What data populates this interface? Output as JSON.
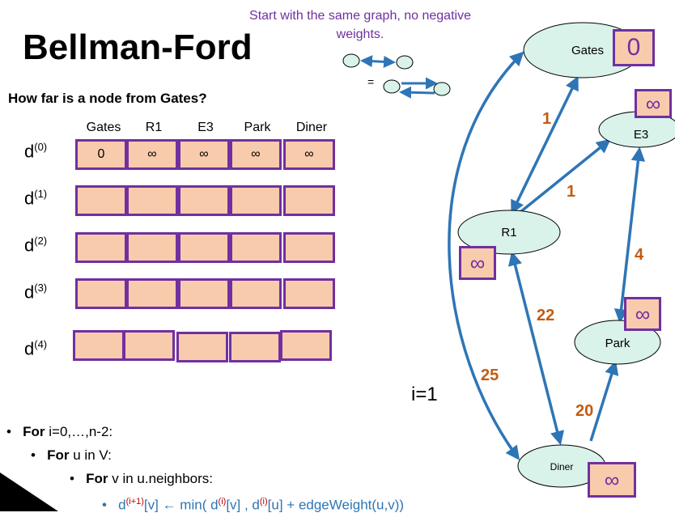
{
  "title": "Bellman-Ford",
  "note": "Start with the same graph, no negative weights.",
  "equals_sign": "=",
  "question": "How far is a node from Gates?",
  "columns": [
    "Gates",
    "R1",
    "E3",
    "Park",
    "Diner"
  ],
  "rows": [
    {
      "label": "d",
      "sup": "(0)",
      "cells": [
        "0",
        "∞",
        "∞",
        "∞",
        "∞"
      ]
    },
    {
      "label": "d",
      "sup": "(1)",
      "cells": [
        "",
        "",
        "",
        "",
        ""
      ]
    },
    {
      "label": "d",
      "sup": "(2)",
      "cells": [
        "",
        "",
        "",
        "",
        ""
      ]
    },
    {
      "label": "d",
      "sup": "(3)",
      "cells": [
        "",
        "",
        "",
        "",
        ""
      ]
    },
    {
      "label": "d",
      "sup": "(4)",
      "cells": [
        "",
        "",
        "",
        "",
        ""
      ]
    }
  ],
  "iteration": "i=1",
  "algorithm": {
    "line1_kw": "For",
    "line1_rest": " i=0,…,n-2:",
    "line2_kw": "For",
    "line2_rest": " u in V:",
    "line3_kw": "For",
    "line3_rest": " v in u.neighbors:",
    "line4": {
      "a": "d",
      "s1": "(i+1)",
      "b": "[v] ← min( d",
      "s2": "(i)",
      "c": "[v] , d",
      "s3": "(i)",
      "d": "[u] + edgeWeight(u,v))"
    }
  },
  "graph": {
    "nodes": {
      "gates": "Gates",
      "e3": "E3",
      "r1": "R1",
      "park": "Park",
      "diner": "Diner"
    },
    "distances": {
      "gates": "0",
      "e3": "∞",
      "r1": "∞",
      "park": "∞",
      "diner": "∞"
    },
    "weights": {
      "gates_r1": "1",
      "r1_e3": "1",
      "e3_park": "4",
      "r1_diner": "22",
      "gates_diner": "25",
      "park_diner": "20"
    }
  },
  "colors": {
    "edge": "#2e75b6",
    "node_fill": "#d9f2ea",
    "box_fill": "#f8cbad",
    "box_border": "#7030a0",
    "weight": "#c55a11",
    "note": "#7030a0"
  }
}
